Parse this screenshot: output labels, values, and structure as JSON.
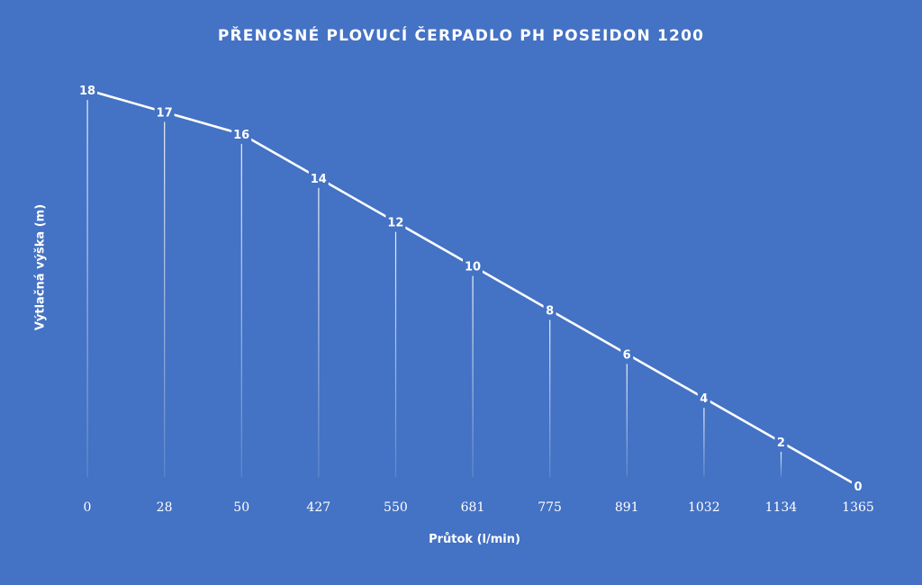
{
  "chart_data": {
    "type": "line",
    "title": "PŘENOSNÉ PLOVUCÍ ČERPADLO PH POSEIDON 1200",
    "xlabel": "Průtok (l/min)",
    "ylabel": "Výtlačná výška (m)",
    "categories": [
      "0",
      "28",
      "50",
      "427",
      "550",
      "681",
      "775",
      "891",
      "1032",
      "1134",
      "1365"
    ],
    "series": [
      {
        "values": [
          18,
          17,
          16,
          14,
          12,
          10,
          8,
          6,
          4,
          2,
          0
        ],
        "color": "#ffffff"
      }
    ],
    "ylim": [
      0,
      18
    ],
    "grid": false,
    "drop_lines": true,
    "data_labels": true,
    "background": "#4472c4"
  }
}
